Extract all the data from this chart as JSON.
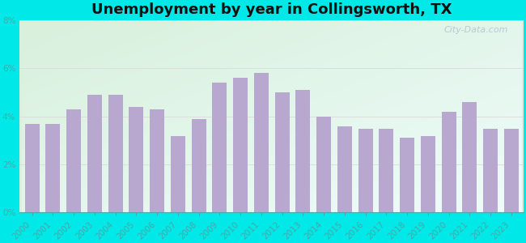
{
  "title": "Unemployment by year in Collingsworth, TX",
  "years": [
    2000,
    2001,
    2002,
    2003,
    2004,
    2005,
    2006,
    2007,
    2008,
    2009,
    2010,
    2011,
    2012,
    2013,
    2014,
    2015,
    2016,
    2017,
    2018,
    2019,
    2020,
    2021,
    2022,
    2023
  ],
  "values": [
    3.7,
    3.7,
    4.3,
    4.9,
    4.9,
    4.4,
    4.3,
    3.2,
    3.9,
    5.4,
    5.6,
    5.8,
    5.0,
    5.1,
    4.0,
    3.6,
    3.5,
    3.5,
    3.1,
    3.2,
    4.2,
    4.6,
    3.5,
    3.5
  ],
  "bar_color": "#b8a8d0",
  "background_outer": "#00e8e8",
  "background_inner_topleft": "#d8f0dc",
  "background_inner_bottomright": "#e8faf8",
  "ylim": [
    0,
    8
  ],
  "yticks": [
    0,
    2,
    4,
    6,
    8
  ],
  "ytick_labels": [
    "0%",
    "2%",
    "4%",
    "6%",
    "8%"
  ],
  "title_fontsize": 13,
  "title_fontweight": "bold",
  "grid_color": "#dddddd",
  "tick_color": "#44aaaa",
  "watermark_text": "City-Data.com",
  "tick_fontsize": 7.5
}
